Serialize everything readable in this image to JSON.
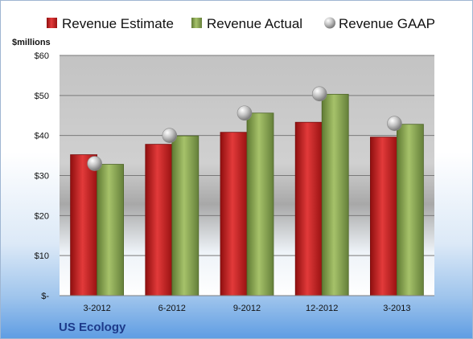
{
  "chart_data": {
    "type": "bar",
    "title": "",
    "company": "US Ecology",
    "unit_label": "$millions",
    "categories": [
      "3-2012",
      "6-2012",
      "9-2012",
      "12-2012",
      "3-2013"
    ],
    "series": [
      {
        "name": "Revenue Estimate",
        "kind": "bar",
        "color": "#c81e1e",
        "values": [
          35.2,
          37.8,
          40.8,
          43.3,
          39.6
        ]
      },
      {
        "name": "Revenue Actual",
        "kind": "bar",
        "color": "#8aa755",
        "values": [
          32.8,
          39.9,
          45.6,
          50.3,
          42.8
        ]
      },
      {
        "name": "Revenue GAAP",
        "kind": "marker",
        "color": "#a9a9a9",
        "values": [
          33.0,
          40.0,
          45.6,
          50.4,
          43.0
        ]
      }
    ],
    "ylim": [
      0,
      60
    ],
    "yticks": [
      0,
      10,
      20,
      30,
      40,
      50,
      60
    ],
    "ytick_labels": [
      "$-",
      "$10",
      "$20",
      "$30",
      "$40",
      "$50",
      "$60"
    ],
    "grid": true,
    "legend_position": "top"
  }
}
